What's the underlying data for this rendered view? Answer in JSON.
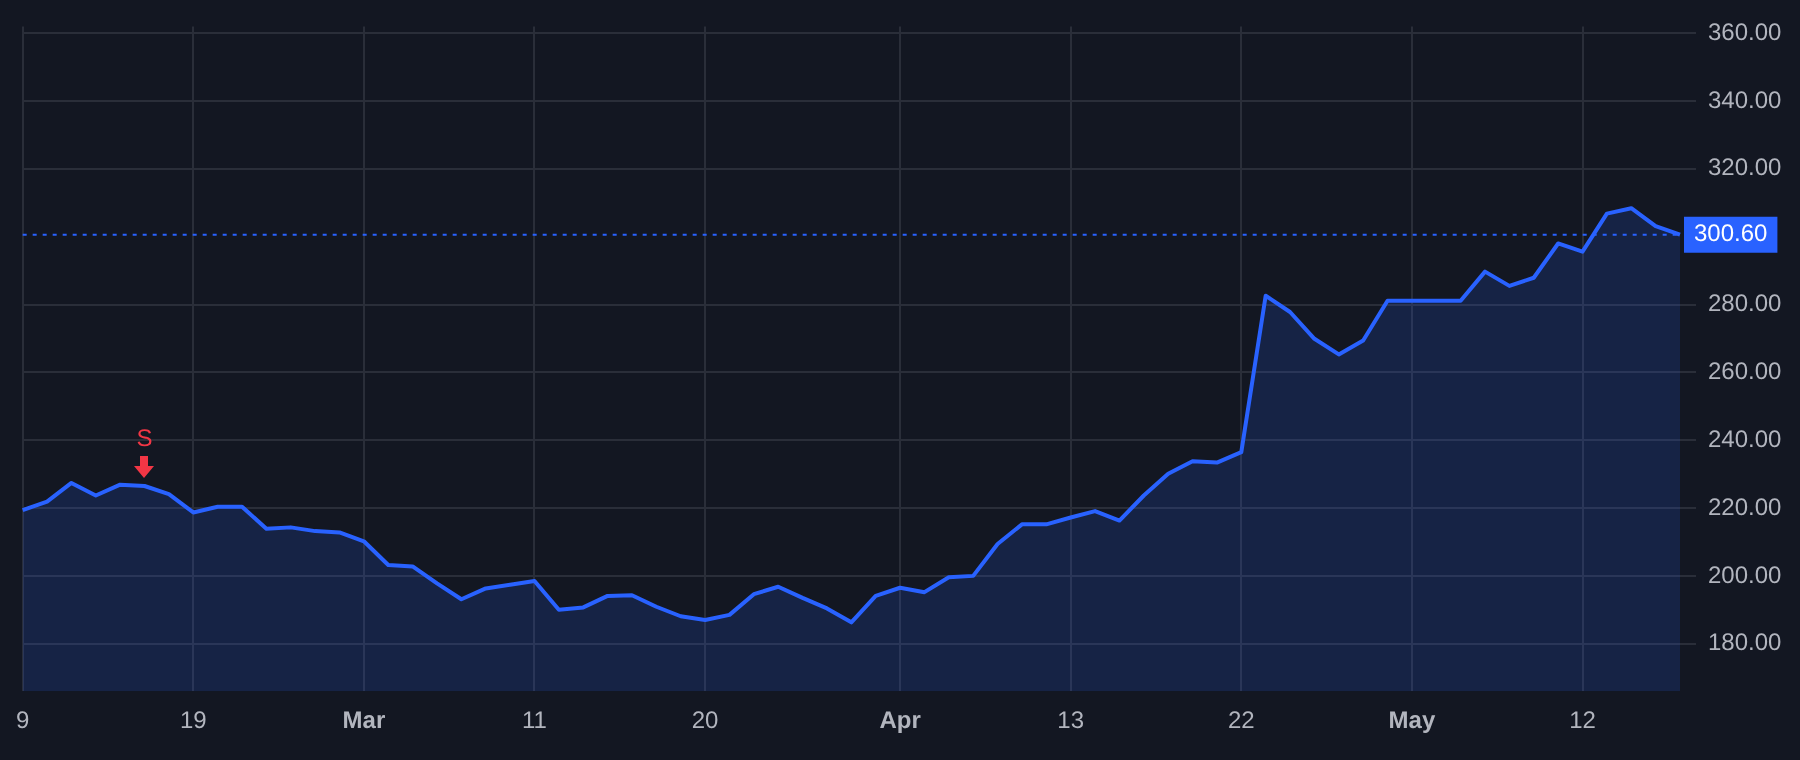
{
  "chart_data": {
    "type": "area",
    "categories": [
      "9",
      null,
      null,
      null,
      null,
      null,
      null,
      "19",
      null,
      null,
      null,
      null,
      null,
      null,
      "Mar",
      null,
      null,
      null,
      null,
      null,
      null,
      "11",
      null,
      null,
      null,
      null,
      null,
      null,
      "20",
      null,
      null,
      null,
      null,
      null,
      null,
      null,
      "Apr",
      null,
      null,
      null,
      null,
      null,
      null,
      "13",
      null,
      null,
      null,
      null,
      null,
      null,
      "22",
      null,
      null,
      null,
      null,
      null,
      null,
      "May",
      null,
      null,
      null,
      null,
      null,
      null,
      "12",
      null,
      null,
      null,
      null
    ],
    "series": [
      {
        "color": "#2962ff",
        "values": [
          219.4,
          221.9,
          227.4,
          223.7,
          226.9,
          226.5,
          224.1,
          218.7,
          220.4,
          220.4,
          213.9,
          214.3,
          213.2,
          212.8,
          210.2,
          203.2,
          202.8,
          197.8,
          193.1,
          196.3,
          197.4,
          198.5,
          190,
          190.7,
          194.1,
          194.3,
          190.9,
          188.1,
          187,
          188.5,
          194.6,
          196.8,
          193.5,
          190.4,
          186.3,
          194.1,
          196.5,
          195.2,
          199.6,
          200,
          209.4,
          215.2,
          215.2,
          217.2,
          219.1,
          216.3,
          223.7,
          230.1,
          233.8,
          233.4,
          236.5,
          282.6,
          277.8,
          269.9,
          265.3,
          269.4,
          281.1,
          281.1,
          281.1,
          281.1,
          289.7,
          285.5,
          287.9,
          298,
          295.6,
          306.8,
          308.4,
          303.1,
          300.6
        ]
      }
    ],
    "ylim": [
      166,
      362
    ],
    "yticks": [
      {
        "value": 180,
        "label": "180.00"
      },
      {
        "value": 200,
        "label": "200.00"
      },
      {
        "value": 220,
        "label": "220.00"
      },
      {
        "value": 240,
        "label": "240.00"
      },
      {
        "value": 260,
        "label": "260.00"
      },
      {
        "value": 280,
        "label": "280.00"
      },
      {
        "value": 320,
        "label": "320.00"
      },
      {
        "value": 340,
        "label": "340.00"
      },
      {
        "value": 360,
        "label": "360.00"
      }
    ],
    "ref_lines": [
      {
        "axis": "y",
        "value": 300.6,
        "label": "300.60",
        "color": "#2962ff",
        "line_style": "dotted"
      }
    ],
    "annotations": [
      {
        "text": "S",
        "y": 226.5
      }
    ],
    "grid": true,
    "legend": false,
    "marker": "none"
  }
}
